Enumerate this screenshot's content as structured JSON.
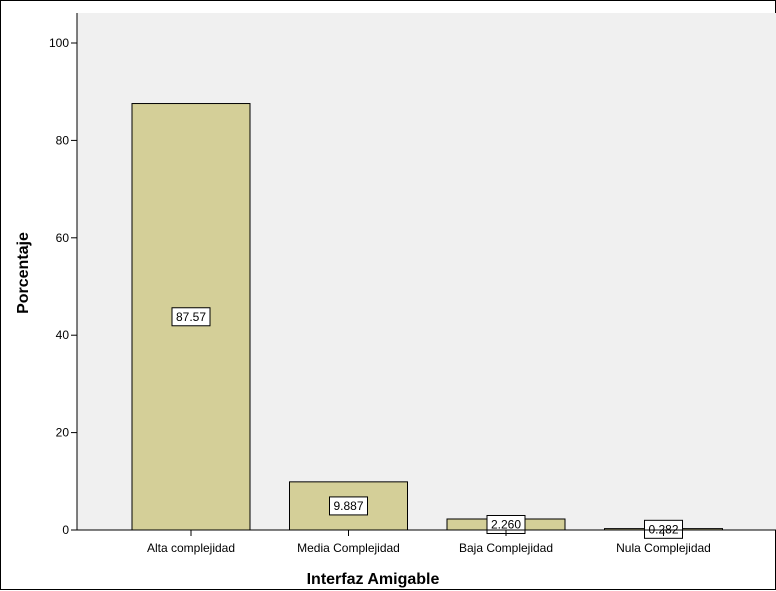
{
  "chart_data": {
    "type": "bar",
    "title": "",
    "xlabel": "Interfaz Amigable",
    "ylabel": "Porcentaje",
    "categories": [
      "Alta complejidad",
      "Media Complejidad",
      "Baja Complejidad",
      "Nula Complejidad"
    ],
    "values": [
      87.57,
      9.887,
      2.26,
      0.282
    ],
    "value_labels": [
      "87.57",
      "9.887",
      "2.260",
      "0.282"
    ],
    "ylim": [
      0,
      100
    ],
    "yticks": [
      "0",
      "20",
      "40",
      "60",
      "80",
      "100"
    ],
    "grid": false,
    "legend": "none",
    "colors": {
      "bar_fill": "#d4cf98",
      "bar_stroke": "#000000",
      "plot_background": "#f0f0f0",
      "label_box": "#ffffff"
    }
  }
}
